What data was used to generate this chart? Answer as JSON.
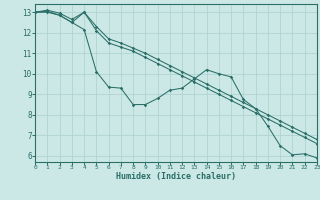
{
  "xlabel": "Humidex (Indice chaleur)",
  "bg_color": "#cce8e6",
  "grid_color": "#aad0ce",
  "line_color": "#2a6e68",
  "xlim": [
    0,
    23
  ],
  "ylim": [
    5.7,
    13.4
  ],
  "yticks": [
    6,
    7,
    8,
    9,
    10,
    11,
    12,
    13
  ],
  "xticks": [
    0,
    1,
    2,
    3,
    4,
    5,
    6,
    7,
    8,
    9,
    10,
    11,
    12,
    13,
    14,
    15,
    16,
    17,
    18,
    19,
    20,
    21,
    22,
    23
  ],
  "line1_x": [
    0,
    1,
    2,
    3,
    4,
    5,
    6,
    7,
    8,
    9,
    10,
    11,
    12,
    13,
    14,
    15,
    16,
    17,
    18,
    19,
    20,
    21,
    22,
    23
  ],
  "line1_y": [
    13.0,
    13.05,
    12.85,
    12.5,
    13.0,
    12.1,
    11.5,
    11.3,
    11.1,
    10.8,
    10.5,
    10.2,
    9.9,
    9.6,
    9.3,
    9.0,
    8.7,
    8.4,
    8.1,
    7.8,
    7.5,
    7.2,
    6.9,
    6.6
  ],
  "line2_x": [
    0,
    1,
    2,
    3,
    4,
    5,
    6,
    7,
    8,
    9,
    10,
    11,
    12,
    13,
    14,
    15,
    16,
    17,
    18,
    19,
    20,
    21,
    22,
    23
  ],
  "line2_y": [
    13.0,
    13.1,
    12.95,
    12.65,
    13.0,
    12.3,
    11.7,
    11.5,
    11.25,
    11.0,
    10.7,
    10.4,
    10.1,
    9.8,
    9.5,
    9.2,
    8.9,
    8.6,
    8.3,
    8.0,
    7.7,
    7.4,
    7.1,
    6.8
  ],
  "line3_x": [
    0,
    1,
    2,
    3,
    4,
    5,
    6,
    7,
    8,
    9,
    10,
    11,
    12,
    13,
    14,
    15,
    16,
    17,
    18,
    19,
    20,
    21,
    22,
    23
  ],
  "line3_y": [
    13.0,
    13.0,
    12.85,
    12.5,
    12.15,
    10.1,
    9.35,
    9.3,
    8.5,
    8.5,
    8.8,
    9.2,
    9.3,
    9.75,
    10.2,
    10.0,
    9.85,
    8.75,
    8.3,
    7.45,
    6.5,
    6.05,
    6.1,
    5.9
  ]
}
